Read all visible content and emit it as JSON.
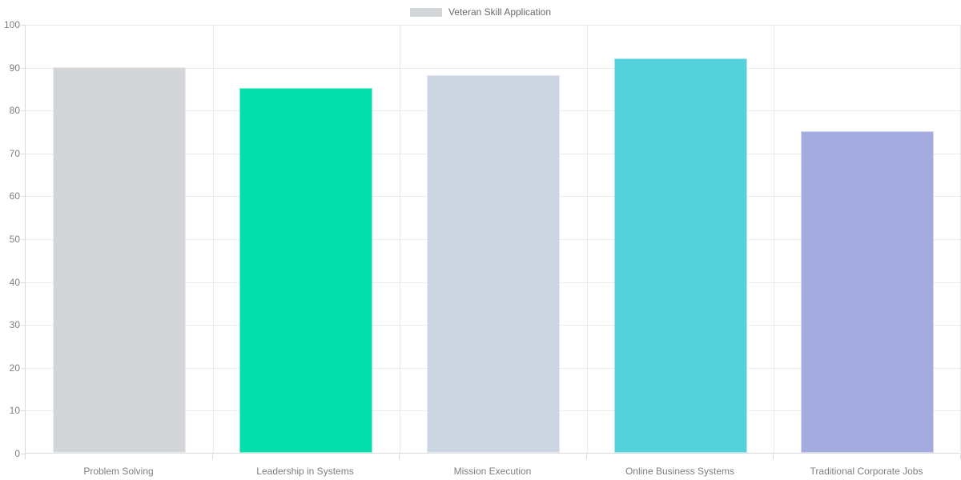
{
  "chart_data": {
    "type": "bar",
    "title": "",
    "series_label": "Veteran Skill Application",
    "categories": [
      "Problem Solving",
      "Leadership in Systems",
      "Mission Execution",
      "Online Business Systems",
      "Traditional Corporate Jobs"
    ],
    "values": [
      90,
      85,
      88,
      92,
      75
    ],
    "bar_colors": [
      "#D2D6D9",
      "#04DEAB",
      "#CCD6E3",
      "#55D1DB",
      "#A3ABDF"
    ],
    "legend_swatch_color": "#D2D6D9",
    "xlabel": "",
    "ylabel": "",
    "ylim": [
      0,
      100
    ],
    "yticks": [
      0,
      10,
      20,
      30,
      40,
      50,
      60,
      70,
      80,
      90,
      100
    ],
    "grid": true,
    "legend_position": "top"
  },
  "colors": {
    "grid": "#EAEAEA",
    "axis": "#D9DCDE",
    "tick_text": "#7B7F83",
    "legend_text": "#666A6E",
    "background": "#FFFFFF",
    "bar_border": "rgba(255,255,255,0.5)"
  }
}
